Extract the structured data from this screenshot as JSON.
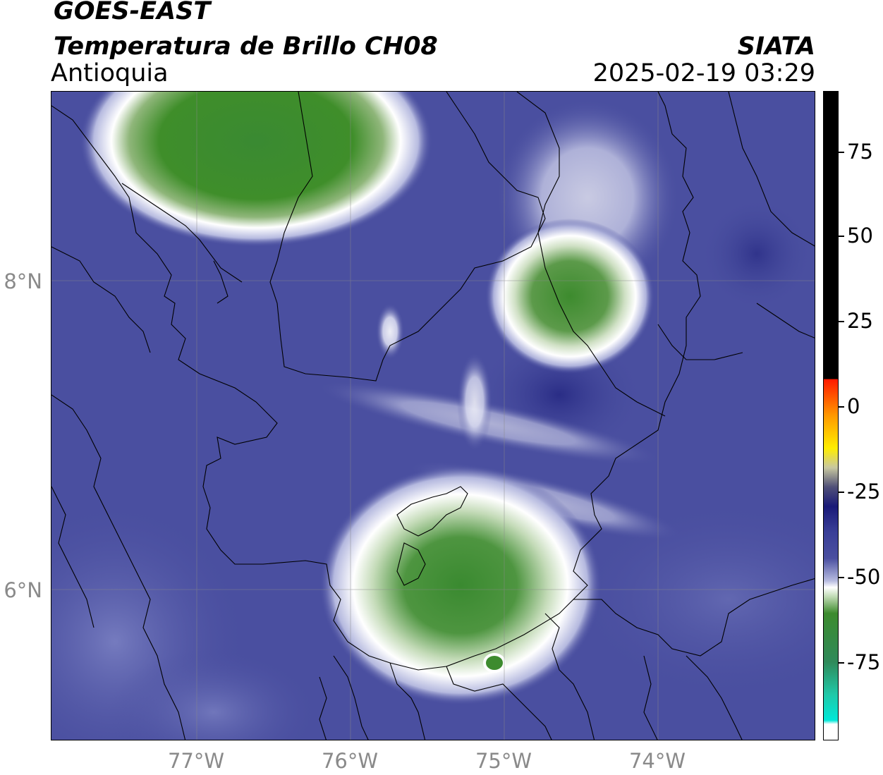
{
  "header": {
    "satellite": "GOES-EAST",
    "product": "Temperatura de Brillo CH08",
    "region": "Antioquia",
    "agency": "SIATA",
    "datetime": "2025-02-19 03:29"
  },
  "map": {
    "lat_ticks": [
      "8°N",
      "6°N"
    ],
    "lon_ticks": [
      "77°W",
      "76°W",
      "75°W",
      "74°W"
    ],
    "background_color": "#4a4fa0",
    "cold_cloud_color": "#3d8b2e",
    "warm_cloud_color": "#e8eaf4"
  },
  "colorbar": {
    "ticks": [
      "75",
      "50",
      "25",
      "0",
      "-25",
      "-50",
      "-75"
    ],
    "unit_range": [
      -95,
      90
    ],
    "colors": {
      "hot": "#000000",
      "red": "#ff1a00",
      "orange": "#ff9900",
      "yellow": "#ffee00",
      "navy": "#1a1a78",
      "blue": "#4a4fa0",
      "white": "#ffffff",
      "green": "#3d8b2e",
      "cyan": "#00e8d8"
    }
  }
}
